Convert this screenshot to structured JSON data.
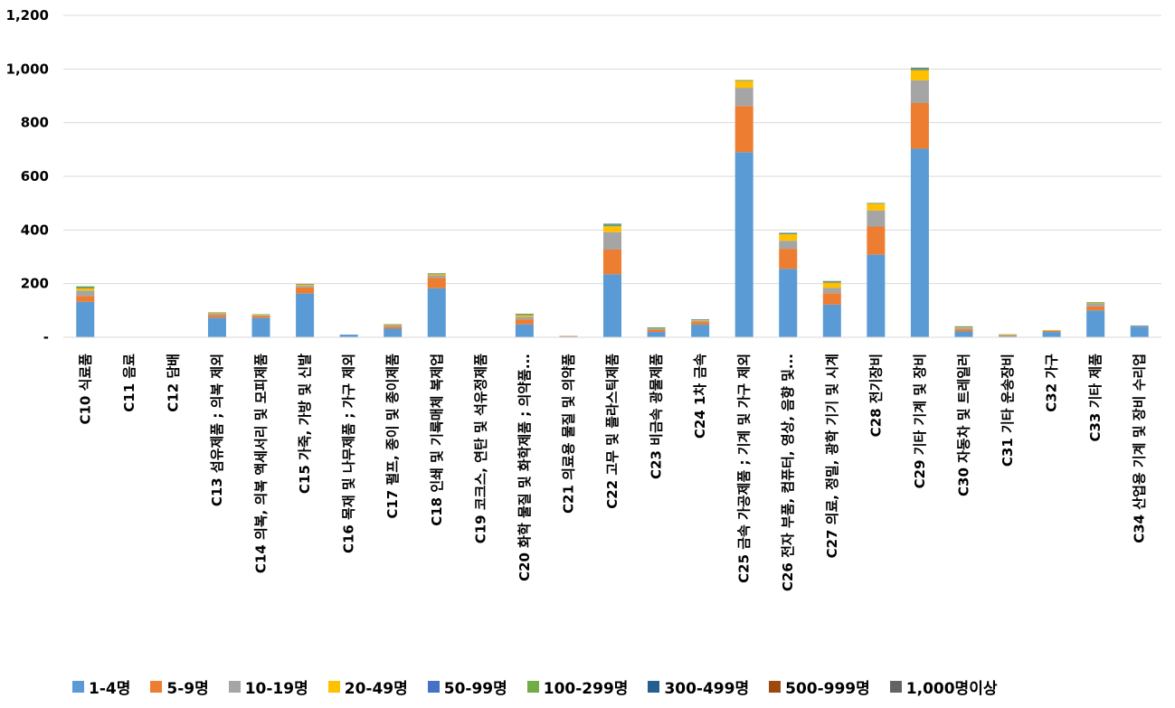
{
  "chart_data": {
    "type": "bar",
    "stacked": true,
    "title": "",
    "xlabel": "",
    "ylabel": "",
    "ylim": [
      0,
      1200
    ],
    "yticks": [
      0,
      200,
      400,
      600,
      800,
      1000,
      1200
    ],
    "ytick_labels": [
      "-",
      "200",
      "400",
      "600",
      "800",
      "1,000",
      "1,200"
    ],
    "grid": true,
    "legend_position": "bottom",
    "categories": [
      "C10 식료품",
      "C11 음료",
      "C12 담배",
      "C13 섬유제품 ; 의복 제외",
      "C14 의복, 의복 액세서리 및 모피제품",
      "C15 가죽, 가방 및 신발",
      "C16 목재 및 나무제품 ; 가구 제외",
      "C17 펄프, 종이 및 종이제품",
      "C18 인쇄 및 기록매체 복제업",
      "C19 코크스, 연탄 및 석유정제품",
      "C20 화학 물질 및 화학제품 ; 의약품...",
      "C21 의료용 물질 및 의약품",
      "C22 고무 및 플라스틱제품",
      "C23 비금속 광물제품",
      "C24 1차 금속",
      "C25 금속 가공제품 ; 기계 및 가구 제외",
      "C26 전자 부품, 컴퓨터, 영상, 음향 및...",
      "C27 의료, 정밀, 광학 기기 및 시계",
      "C28 전기장비",
      "C29 기타 기계 및 장비",
      "C30 자동차 및 트레일러",
      "C31 기타 운송장비",
      "C32 가구",
      "C33 기타 제품",
      "C34 산업용 기계 및 장비 수리업"
    ],
    "series": [
      {
        "name": "1-4명",
        "color": "#5B9BD5",
        "values": [
          132,
          0,
          0,
          73,
          72,
          163,
          10,
          32,
          183,
          0,
          48,
          3,
          235,
          20,
          47,
          690,
          255,
          122,
          308,
          703,
          22,
          3,
          20,
          100,
          40
        ]
      },
      {
        "name": "5-9명",
        "color": "#ED7D31",
        "values": [
          22,
          0,
          0,
          10,
          7,
          23,
          0,
          7,
          38,
          0,
          18,
          2,
          92,
          7,
          10,
          172,
          75,
          42,
          105,
          170,
          8,
          3,
          4,
          15,
          0
        ]
      },
      {
        "name": "10-19명",
        "color": "#A5A5A5",
        "values": [
          20,
          0,
          0,
          5,
          4,
          7,
          0,
          5,
          10,
          0,
          10,
          0,
          65,
          5,
          5,
          68,
          30,
          20,
          60,
          85,
          5,
          3,
          2,
          10,
          2
        ]
      },
      {
        "name": "20-49명",
        "color": "#FFC000",
        "values": [
          8,
          0,
          0,
          3,
          2,
          4,
          0,
          3,
          5,
          0,
          6,
          0,
          22,
          2,
          3,
          26,
          25,
          20,
          25,
          38,
          3,
          1,
          1,
          3,
          1
        ]
      },
      {
        "name": "50-99명",
        "color": "#4472C4",
        "values": [
          2,
          0,
          0,
          1,
          0,
          1,
          0,
          1,
          1,
          0,
          2,
          0,
          3,
          1,
          1,
          2,
          3,
          3,
          2,
          3,
          1,
          0,
          0,
          1,
          1
        ]
      },
      {
        "name": "100-299명",
        "color": "#70AD47",
        "values": [
          6,
          0,
          0,
          1,
          1,
          1,
          0,
          1,
          2,
          0,
          4,
          0,
          5,
          2,
          1,
          1,
          2,
          3,
          1,
          4,
          2,
          1,
          0,
          2,
          0
        ]
      },
      {
        "name": "300-499명",
        "color": "#255E91",
        "values": [
          0,
          0,
          0,
          0,
          0,
          0,
          0,
          0,
          0,
          0,
          0,
          0,
          1,
          0,
          0,
          0,
          0,
          0,
          0,
          2,
          0,
          0,
          0,
          0,
          0
        ]
      },
      {
        "name": "500-999명",
        "color": "#9E480E",
        "values": [
          0,
          0,
          0,
          0,
          0,
          0,
          0,
          0,
          0,
          0,
          0,
          0,
          0,
          0,
          0,
          0,
          0,
          0,
          0,
          0,
          0,
          0,
          0,
          0,
          0
        ]
      },
      {
        "name": "1,000명이상",
        "color": "#636363",
        "values": [
          0,
          0,
          0,
          0,
          0,
          0,
          0,
          0,
          0,
          0,
          0,
          0,
          0,
          0,
          0,
          0,
          0,
          0,
          0,
          0,
          0,
          0,
          0,
          0,
          0
        ]
      }
    ]
  }
}
